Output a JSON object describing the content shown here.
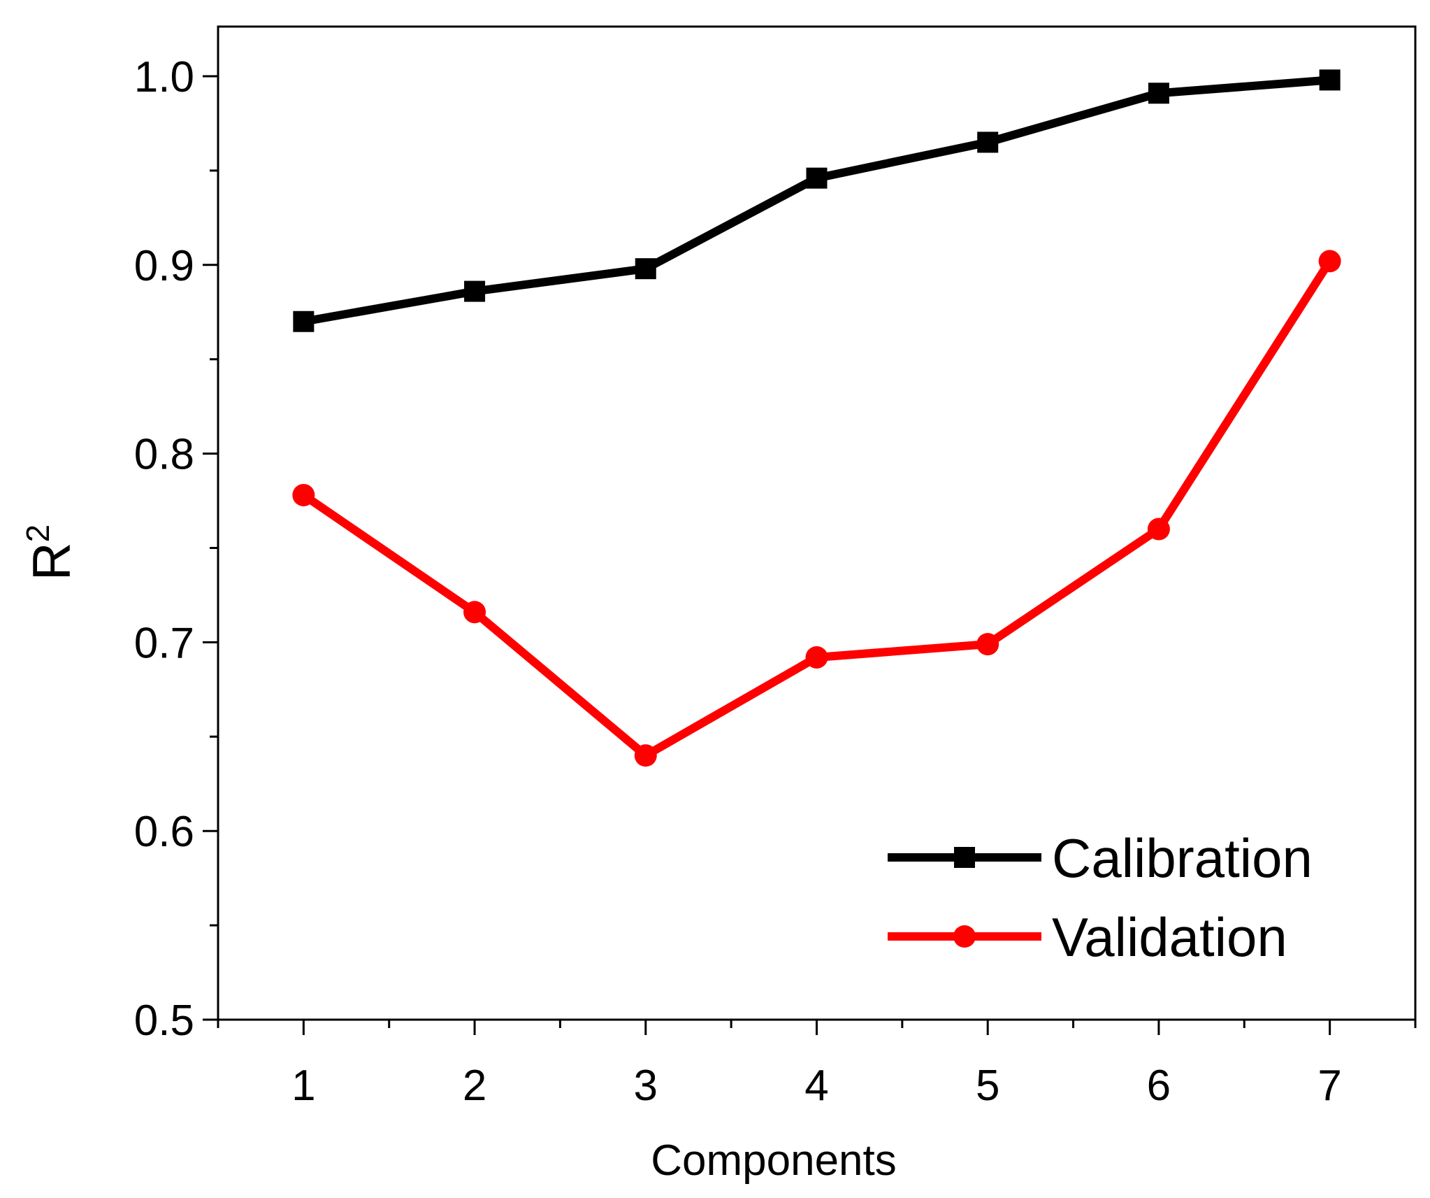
{
  "chart_data": {
    "type": "line",
    "title": "",
    "xlabel": "Components",
    "ylabel_base": "R",
    "ylabel_sup": "2",
    "x": [
      1,
      2,
      3,
      4,
      5,
      6,
      7
    ],
    "xlim": [
      0.5,
      7.5
    ],
    "ylim": [
      0.5,
      1.0
    ],
    "x_ticks": [
      1,
      2,
      3,
      4,
      5,
      6,
      7
    ],
    "x_tick_labels": [
      "1",
      "2",
      "3",
      "4",
      "5",
      "6",
      "7"
    ],
    "y_ticks": [
      0.5,
      0.6,
      0.7,
      0.8,
      0.9,
      1.0
    ],
    "y_tick_labels": [
      "0.5",
      "0.6",
      "0.7",
      "0.8",
      "0.9",
      "1.0"
    ],
    "grid": false,
    "legend_position": "bottom-right",
    "series": [
      {
        "name": "Calibration",
        "color": "#000000",
        "marker": "square",
        "values": [
          0.87,
          0.886,
          0.898,
          0.946,
          0.965,
          0.991,
          0.998
        ]
      },
      {
        "name": "Validation",
        "color": "#ff0000",
        "marker": "circle",
        "values": [
          0.778,
          0.716,
          0.64,
          0.692,
          0.699,
          0.76,
          0.902
        ]
      }
    ]
  }
}
